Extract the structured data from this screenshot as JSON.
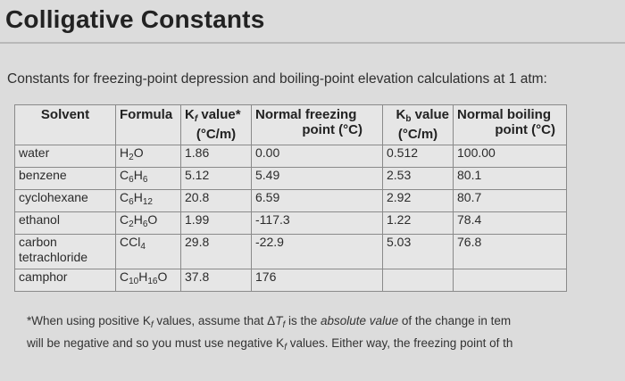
{
  "title": "Colligative Constants",
  "subtitle": "Constants for freezing-point depression and boiling-point elevation calculations at 1 atm:",
  "table": {
    "headers": {
      "solvent": "Solvent",
      "formula": "Formula",
      "kf_l1": "Kf value*",
      "kf_l2": "(°C/m)",
      "nf_l1": "Normal freezing",
      "nf_l2": "point (°C)",
      "kb_l1": "Kb value",
      "kb_l2": "(°C/m)",
      "nb_l1": "Normal boiling",
      "nb_l2": "point (°C)"
    },
    "rows": [
      {
        "solvent": "water",
        "formula_html": "H<sub>2</sub>O",
        "kf": "1.86",
        "nf": "0.00",
        "kb": "0.512",
        "nb": "100.00"
      },
      {
        "solvent": "benzene",
        "formula_html": "C<sub>6</sub>H<sub>6</sub>",
        "kf": "5.12",
        "nf": "5.49",
        "kb": "2.53",
        "nb": "80.1"
      },
      {
        "solvent": "cyclohexane",
        "formula_html": "C<sub>6</sub>H<sub>12</sub>",
        "kf": "20.8",
        "nf": "6.59",
        "kb": "2.92",
        "nb": "80.7"
      },
      {
        "solvent": "ethanol",
        "formula_html": "C<sub>2</sub>H<sub>6</sub>O",
        "kf": "1.99",
        "nf": "-117.3",
        "kb": "1.22",
        "nb": "78.4"
      },
      {
        "solvent": "carbon tetrachloride",
        "formula_html": "CCl<sub>4</sub>",
        "kf": "29.8",
        "nf": "-22.9",
        "kb": "5.03",
        "nb": "76.8"
      },
      {
        "solvent": "camphor",
        "formula_html": "C<sub>10</sub>H<sub>16</sub>O",
        "kf": "37.8",
        "nf": "176",
        "kb": "",
        "nb": ""
      }
    ]
  },
  "footnote": {
    "line1": "*When using positive Kf values, assume that ΔTf is the absolute value of the change in tem",
    "line2": "will be negative and so you must use negative Kf values. Either way, the freezing point of th"
  }
}
